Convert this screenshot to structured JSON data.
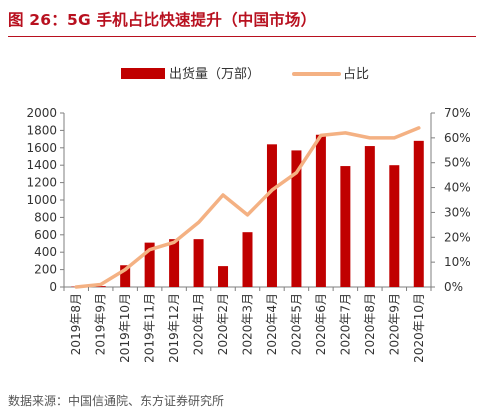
{
  "header": {
    "title": "图 26：5G 手机占比快速提升（中国市场）"
  },
  "footer": {
    "source": "数据来源：中国信通院、东方证券研究所"
  },
  "colors": {
    "title": "#b8101f",
    "bar": "#c00000",
    "line": "#f4b183",
    "axis": "#7f7f7f",
    "text": "#333333"
  },
  "chart_data": {
    "type": "bar",
    "title": "",
    "categories": [
      "2019年8月",
      "2019年9月",
      "2019年10月",
      "2019年11月",
      "2019年12月",
      "2020年1月",
      "2020年2月",
      "2020年3月",
      "2020年4月",
      "2020年5月",
      "2020年6月",
      "2020年7月",
      "2020年8月",
      "2020年9月",
      "2020年10月"
    ],
    "series": [
      {
        "name": "出货量（万部）",
        "type": "bar",
        "axis": "left",
        "values": [
          5,
          10,
          250,
          510,
          550,
          550,
          240,
          630,
          1640,
          1570,
          1750,
          1390,
          1620,
          1400,
          1680
        ]
      },
      {
        "name": "占比",
        "type": "line",
        "axis": "right",
        "values": [
          0.0,
          0.01,
          0.07,
          0.15,
          0.18,
          0.26,
          0.37,
          0.29,
          0.39,
          0.46,
          0.61,
          0.62,
          0.6,
          0.6,
          0.64
        ]
      }
    ],
    "y_left": {
      "min": 0,
      "max": 2000,
      "step": 200,
      "tick_labels": [
        "0",
        "200",
        "400",
        "600",
        "800",
        "1000",
        "1200",
        "1400",
        "1600",
        "1800",
        "2000"
      ]
    },
    "y_right": {
      "min": 0,
      "max": 0.7,
      "step": 0.1,
      "tick_labels": [
        "0%",
        "10%",
        "20%",
        "30%",
        "40%",
        "50%",
        "60%",
        "70%"
      ]
    },
    "legend": {
      "placement": "top-center",
      "items": [
        "出货量（万部）",
        "占比"
      ]
    },
    "grid": false
  }
}
